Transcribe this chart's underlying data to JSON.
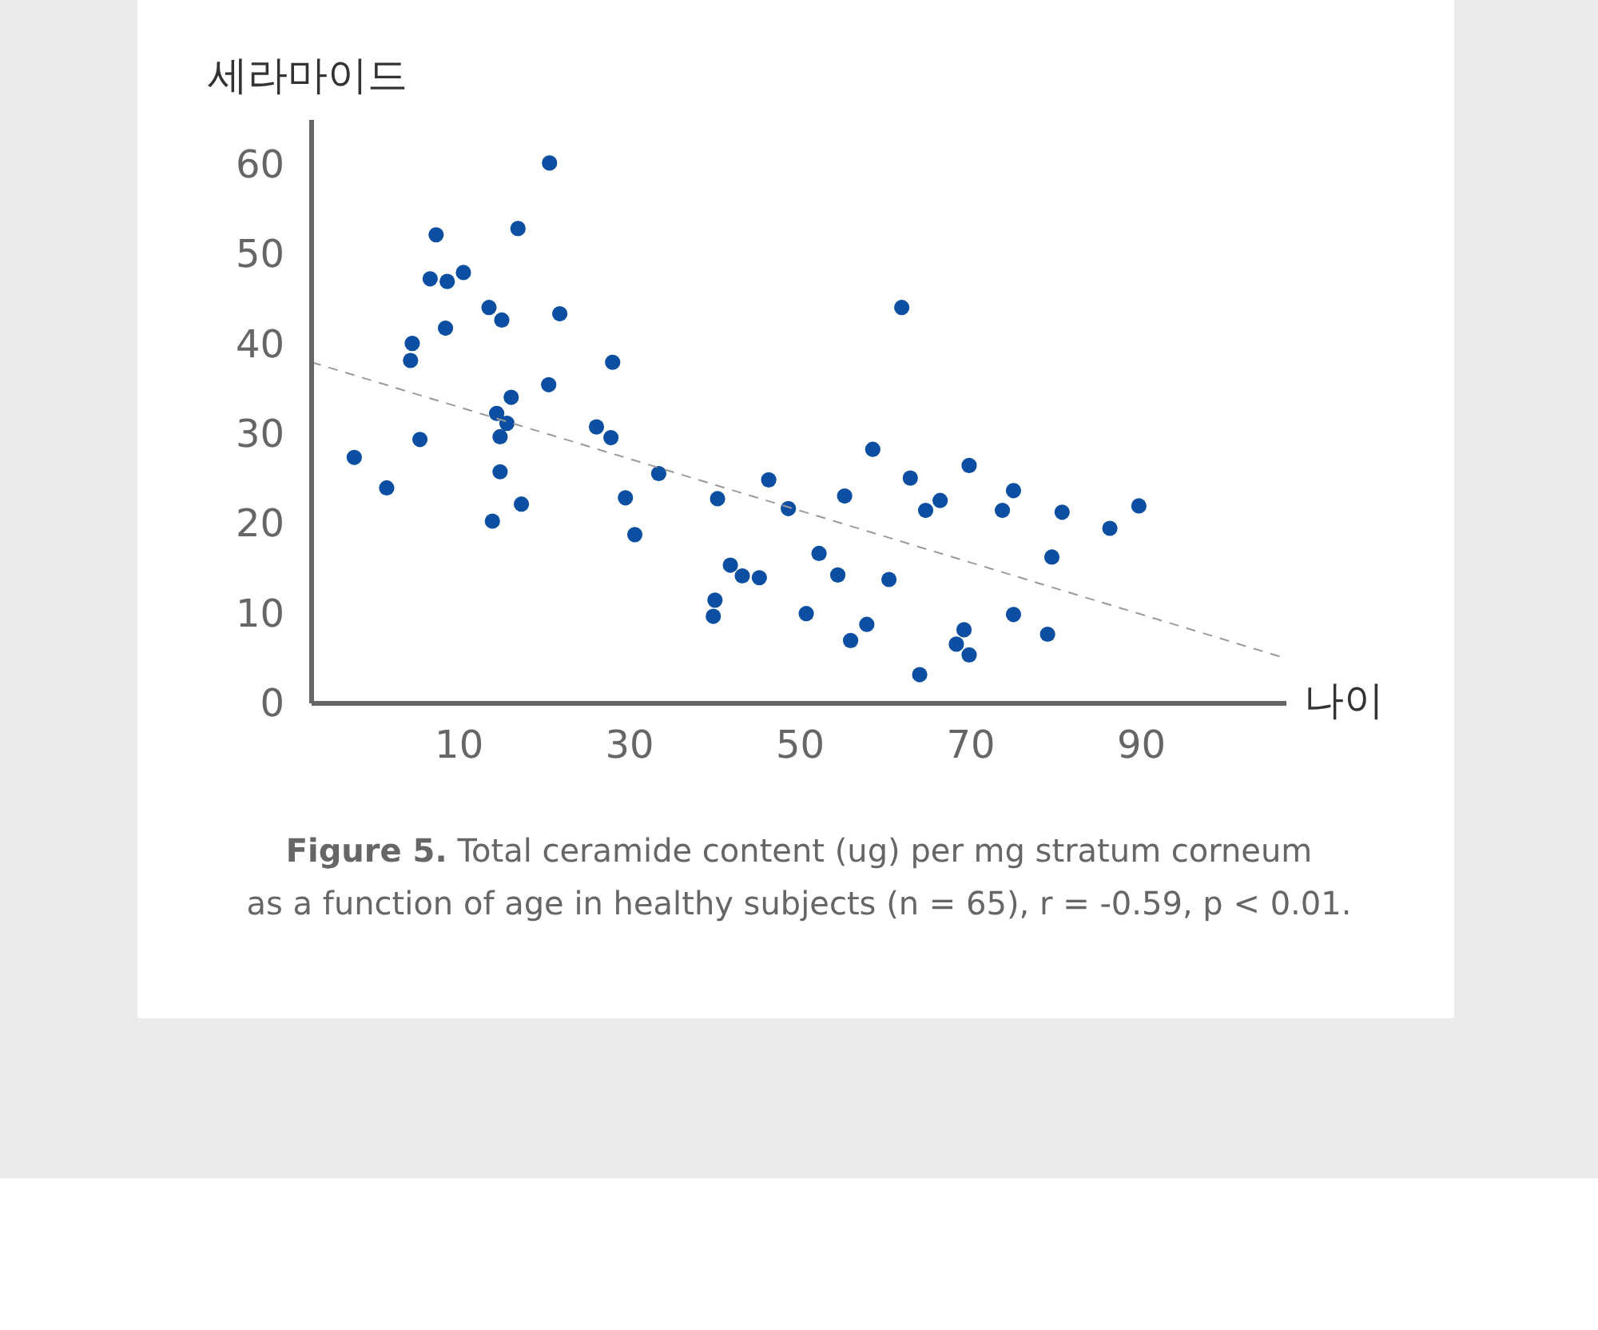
{
  "chart_data": {
    "type": "scatter",
    "ylabel": "세라마이드",
    "xlabel": "나이",
    "xlim": [
      -7.3,
      107
    ],
    "ylim": [
      0,
      65
    ],
    "xticks": [
      10,
      30,
      50,
      70,
      90
    ],
    "yticks": [
      0,
      10,
      20,
      30,
      40,
      50,
      60
    ],
    "grid": false,
    "annotations": [
      "Figure 5.",
      "Total ceramide content (ug) per mg stratum corneum",
      "as a function of age in healthy subjects (n = 65), r = -0.59, p < 0.01."
    ],
    "series": [
      {
        "color": "#0b4ea2",
        "marker": "circle",
        "x": [
          -2.3,
          1.5,
          4.5,
          4.3,
          5.4,
          6.6,
          7.3,
          8.6,
          8.4,
          10.5,
          13.5,
          15.0,
          16.9,
          20.6,
          21.8,
          20.5,
          16.1,
          14.4,
          15.6,
          14.8,
          14.8,
          13.9,
          17.3,
          26.1,
          28.0,
          27.8,
          29.5,
          30.6,
          33.4,
          40.3,
          39.8,
          40.0,
          41.8,
          43.2,
          45.2,
          46.3,
          48.6,
          50.7,
          52.2,
          54.4,
          55.2,
          55.9,
          57.8,
          58.5,
          60.4,
          61.9,
          62.9,
          64.0,
          64.7,
          66.4,
          68.3,
          69.2,
          69.8,
          69.8,
          73.7,
          75.0,
          75.0,
          79.5,
          79.0,
          80.7,
          86.3,
          89.7
        ],
        "values": [
          27.4,
          24.0,
          40.1,
          38.2,
          29.4,
          47.3,
          52.2,
          47.0,
          41.8,
          48.0,
          44.1,
          42.7,
          52.9,
          60.2,
          43.4,
          35.5,
          34.1,
          32.3,
          31.2,
          29.7,
          25.8,
          20.3,
          22.2,
          30.8,
          38.0,
          29.6,
          22.9,
          18.8,
          25.6,
          22.8,
          9.7,
          11.5,
          15.4,
          14.2,
          14.0,
          24.9,
          21.7,
          10.0,
          16.7,
          14.3,
          23.1,
          7.0,
          8.8,
          28.3,
          13.8,
          44.1,
          25.1,
          3.2,
          21.5,
          22.6,
          6.6,
          8.2,
          26.5,
          5.4,
          21.5,
          9.9,
          23.7,
          16.3,
          7.7,
          21.3,
          19.5,
          22.0
        ]
      },
      {
        "type": "line",
        "color": "#9a9a9a",
        "line_style": "dashed",
        "x": [
          -7.3,
          107
        ],
        "values": [
          38.0,
          5.0
        ]
      }
    ]
  }
}
